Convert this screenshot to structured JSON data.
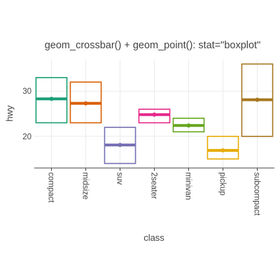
{
  "chart_data": {
    "type": "boxplot",
    "title": "geom_crossbar() + geom_point(): stat=\"boxplot\"",
    "xlabel": "class",
    "ylabel": "hwy",
    "ylim": [
      13,
      37
    ],
    "yticks": [
      20,
      30
    ],
    "grid": true,
    "categories": [
      "compact",
      "midsize",
      "suv",
      "2seater",
      "minivan",
      "pickup",
      "subcompact"
    ],
    "colors": [
      "#1b9e77",
      "#d95f02",
      "#7570b3",
      "#e7298a",
      "#66a61e",
      "#e6ab02",
      "#a6761d"
    ],
    "boxes": [
      {
        "category": "compact",
        "lower": 23,
        "middle": 28.3,
        "upper": 33,
        "point": 28.3
      },
      {
        "category": "midsize",
        "lower": 23,
        "middle": 27.3,
        "upper": 32,
        "point": 27.3
      },
      {
        "category": "suv",
        "lower": 14,
        "middle": 18.1,
        "upper": 22,
        "point": 18.1
      },
      {
        "category": "2seater",
        "lower": 23,
        "middle": 24.8,
        "upper": 26,
        "point": 24.8
      },
      {
        "category": "minivan",
        "lower": 21,
        "middle": 22.4,
        "upper": 24,
        "point": 22.4
      },
      {
        "category": "pickup",
        "lower": 15,
        "middle": 16.9,
        "upper": 20,
        "point": 16.9
      },
      {
        "category": "subcompact",
        "lower": 20,
        "middle": 28.1,
        "upper": 36,
        "point": 28.1
      }
    ]
  }
}
